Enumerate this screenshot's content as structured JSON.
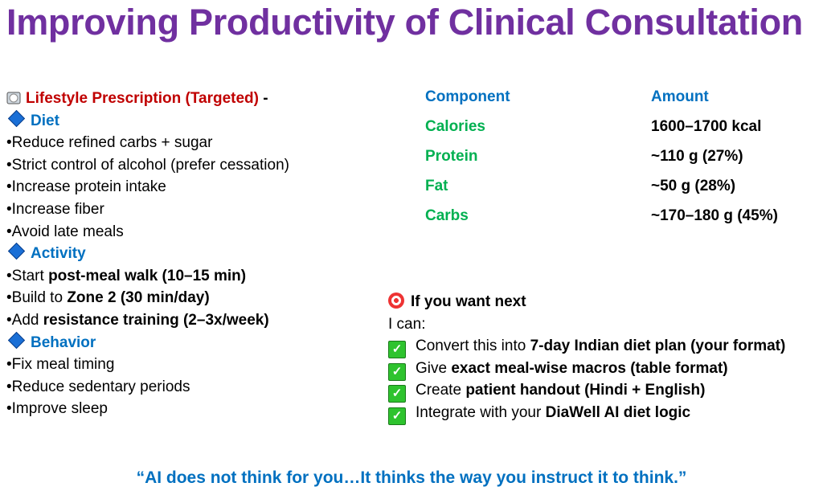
{
  "title": "Improving Productivity of Clinical Consultation",
  "left": {
    "heading": "Lifestyle Prescription (Targeted)",
    "heading_suffix": " -",
    "diet": {
      "label": "Diet",
      "items": [
        "•Reduce refined carbs + sugar",
        "•Strict control of alcohol (prefer cessation)",
        "•Increase protein intake",
        "•Increase fiber",
        "•Avoid late meals"
      ]
    },
    "activity": {
      "label": "Activity",
      "items": [
        {
          "pre": "•Start ",
          "bold": "post-meal walk (10–15 min)"
        },
        {
          "pre": "•Build to ",
          "bold": "Zone 2 (30 min/day)"
        },
        {
          "pre": "•Add ",
          "bold": "resistance training (2–3x/week)"
        }
      ]
    },
    "behavior": {
      "label": "Behavior",
      "items": [
        "•Fix meal timing",
        "•Reduce sedentary periods",
        "•Improve sleep"
      ]
    }
  },
  "table": {
    "headers": [
      "Component",
      "Amount"
    ],
    "rows": [
      [
        "Calories",
        "1600–1700 kcal"
      ],
      [
        "Protein",
        "~110 g (27%)"
      ],
      [
        "Fat",
        "~50 g (28%)"
      ],
      [
        "Carbs",
        "~170–180 g (45%)"
      ]
    ]
  },
  "next": {
    "heading": "If you want next",
    "intro": "I can:",
    "items": [
      {
        "pre": "Convert this into ",
        "bold": "7-day Indian diet plan (your format)"
      },
      {
        "pre": "Give ",
        "bold": "exact meal-wise macros (table format)"
      },
      {
        "pre": "Create ",
        "bold": "patient handout (Hindi + English)"
      },
      {
        "pre": "Integrate with your ",
        "bold": "DiaWell AI diet logic"
      }
    ]
  },
  "quote": "“AI does not think for you…It thinks the way you instruct it to think.”",
  "colors": {
    "title": "#7030A0",
    "red": "#C00000",
    "blue": "#0070C0",
    "green": "#00B050"
  }
}
